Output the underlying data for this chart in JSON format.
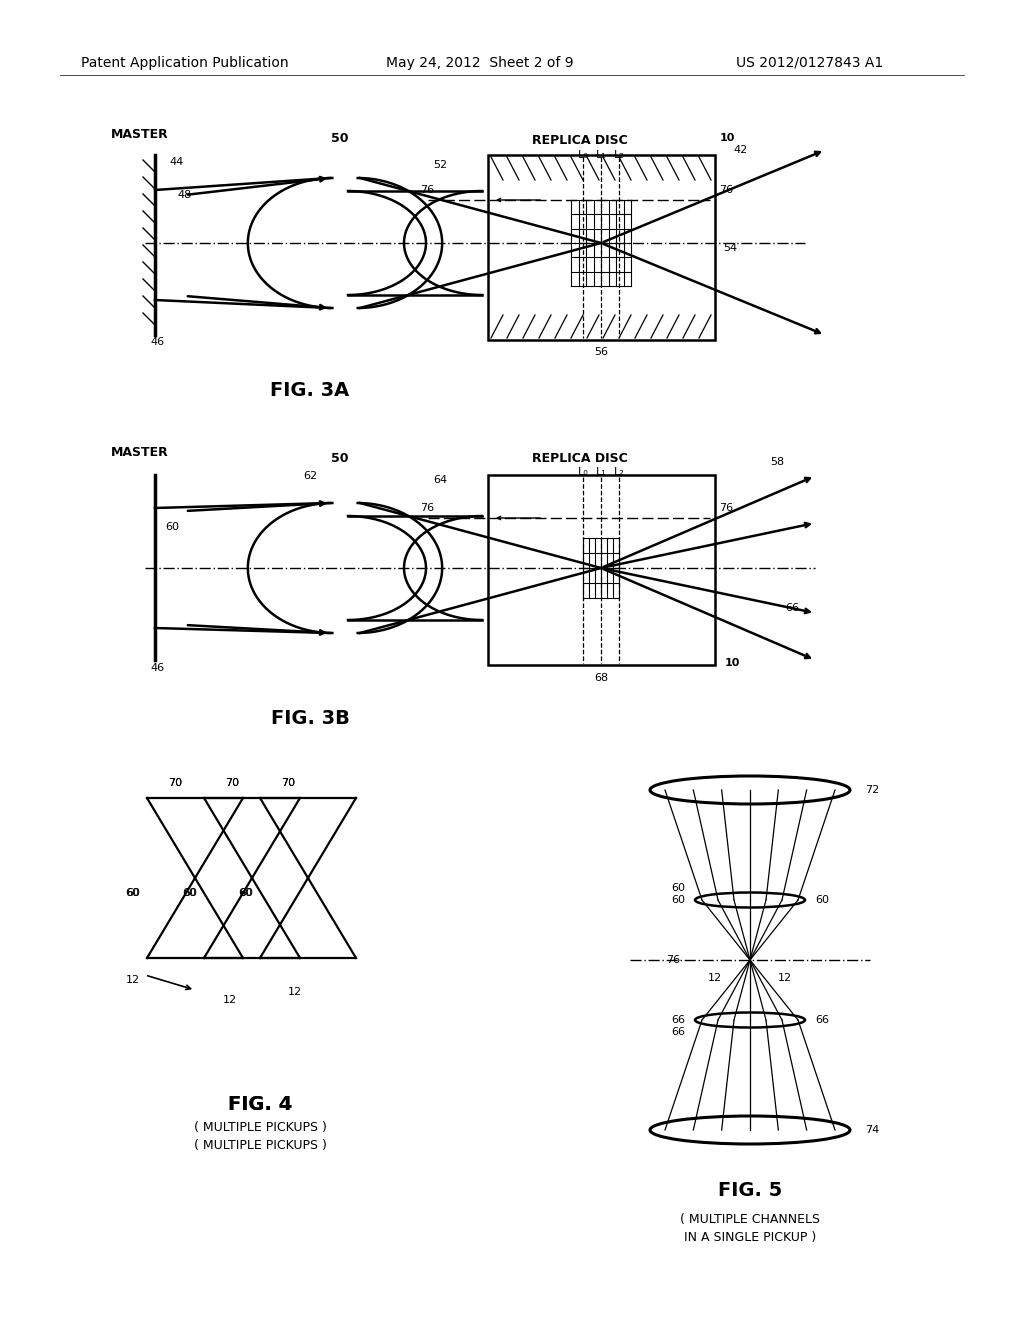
{
  "bg_color": "#ffffff",
  "header_left": "Patent Application Publication",
  "header_mid": "May 24, 2012  Sheet 2 of 9",
  "header_right": "US 2012/0127843 A1",
  "fig3a_label": "FIG. 3A",
  "fig3b_label": "FIG. 3B",
  "fig4_label": "FIG. 4",
  "fig4_sub": "( MULTIPLE PICKUPS )",
  "fig5_label": "FIG. 5",
  "fig5_sub": "( MULTIPLE CHANNELS\n IN A SINGLE PICKUP )"
}
